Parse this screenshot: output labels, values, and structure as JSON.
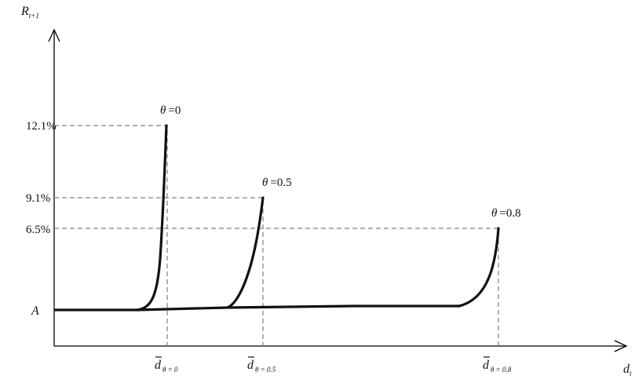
{
  "axes": {
    "y_label": "R",
    "y_label_sub": "t+1",
    "x_label": "d",
    "x_label_sub": "t",
    "origin_label": "A"
  },
  "y_ticks": [
    "12.1%",
    "9.1%",
    "6.5%"
  ],
  "curves": [
    {
      "theta_symbol": "θ",
      "theta_value": "=0",
      "rate": "12.1%",
      "x_tick_symbol": "d",
      "x_tick_sub": "θ = 0"
    },
    {
      "theta_symbol": "θ",
      "theta_value": "=0.5",
      "rate": "9.1%",
      "x_tick_symbol": "d",
      "x_tick_sub": "θ = 0.5"
    },
    {
      "theta_symbol": "θ",
      "theta_value": "=0.8",
      "rate": "6.5%",
      "x_tick_symbol": "d",
      "x_tick_sub": "θ = 0.8"
    }
  ],
  "colors": {
    "curve": "#111111",
    "guide": "#7f7f7f",
    "axis": "#000000"
  }
}
